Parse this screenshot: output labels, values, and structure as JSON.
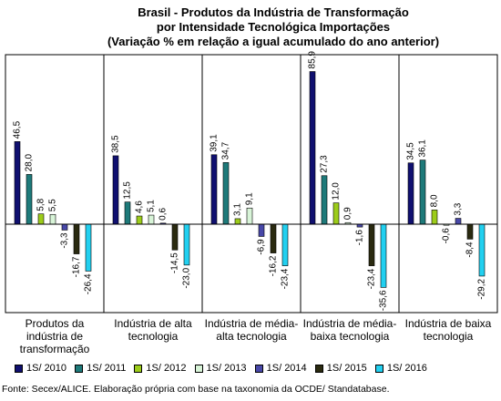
{
  "chart_data": {
    "type": "bar",
    "title_lines": [
      "Brasil - Produtos da Indústria de Transformação",
      "por Intensidade Tecnológica Importações",
      "(Variação % em relação a igual acumulado do ano anterior)"
    ],
    "categories": [
      "Produtos da indústria de transformação",
      "Indústria de alta tecnologia",
      "Indústria de média-alta tecnologia",
      "Indústria de média-baixa tecnologia",
      "Indústria de baixa tecnologia"
    ],
    "series": [
      {
        "name": "1S/ 2010",
        "color": "#101070",
        "values": [
          46.5,
          38.5,
          39.1,
          85.9,
          34.5
        ]
      },
      {
        "name": "1S/ 2011",
        "color": "#1e7a7a",
        "values": [
          28.0,
          12.5,
          34.7,
          27.3,
          36.1
        ]
      },
      {
        "name": "1S/ 2012",
        "color": "#9ccc1a",
        "values": [
          5.8,
          4.6,
          3.1,
          12.0,
          8.0
        ]
      },
      {
        "name": "1S/ 2013",
        "color": "#d8f4d8",
        "values": [
          5.5,
          5.1,
          9.1,
          0.9,
          -0.6
        ]
      },
      {
        "name": "1S/ 2014",
        "color": "#4848a8",
        "values": [
          -3.3,
          0.6,
          -6.9,
          -1.6,
          3.3
        ]
      },
      {
        "name": "1S/ 2015",
        "color": "#2a2a10",
        "values": [
          -16.7,
          -14.5,
          -16.2,
          -23.4,
          -8.4
        ]
      },
      {
        "name": "1S/ 2016",
        "color": "#22d0f0",
        "values": [
          -26.4,
          -23.0,
          -23.4,
          -35.6,
          -29.2
        ]
      }
    ],
    "data_labels": [
      [
        "46,5",
        "38,5",
        "39,1",
        "85,9",
        "34,5"
      ],
      [
        "28,0",
        "12,5",
        "34,7",
        "27,3",
        "36,1"
      ],
      [
        "5,8",
        "4,6",
        "3,1",
        "12,0",
        "8,0"
      ],
      [
        "5,5",
        "5,1",
        "9,1",
        "0,9",
        "-0,6"
      ],
      [
        "-3,3",
        "0,6",
        "-6,9",
        "-1,6",
        "3,3"
      ],
      [
        "-16,7",
        "-14,5",
        "-16,2",
        "-23,4",
        "-8,4"
      ],
      [
        "-26,4",
        "-23,0",
        "-23,4",
        "-35,6",
        "-29,2"
      ]
    ],
    "ylim": [
      -36,
      86
    ],
    "legend_position": "bottom",
    "grid": false
  },
  "source": "Fonte: Secex/ALICE. Elaboração própria com base na taxonomia da OCDE/ Standatabase."
}
